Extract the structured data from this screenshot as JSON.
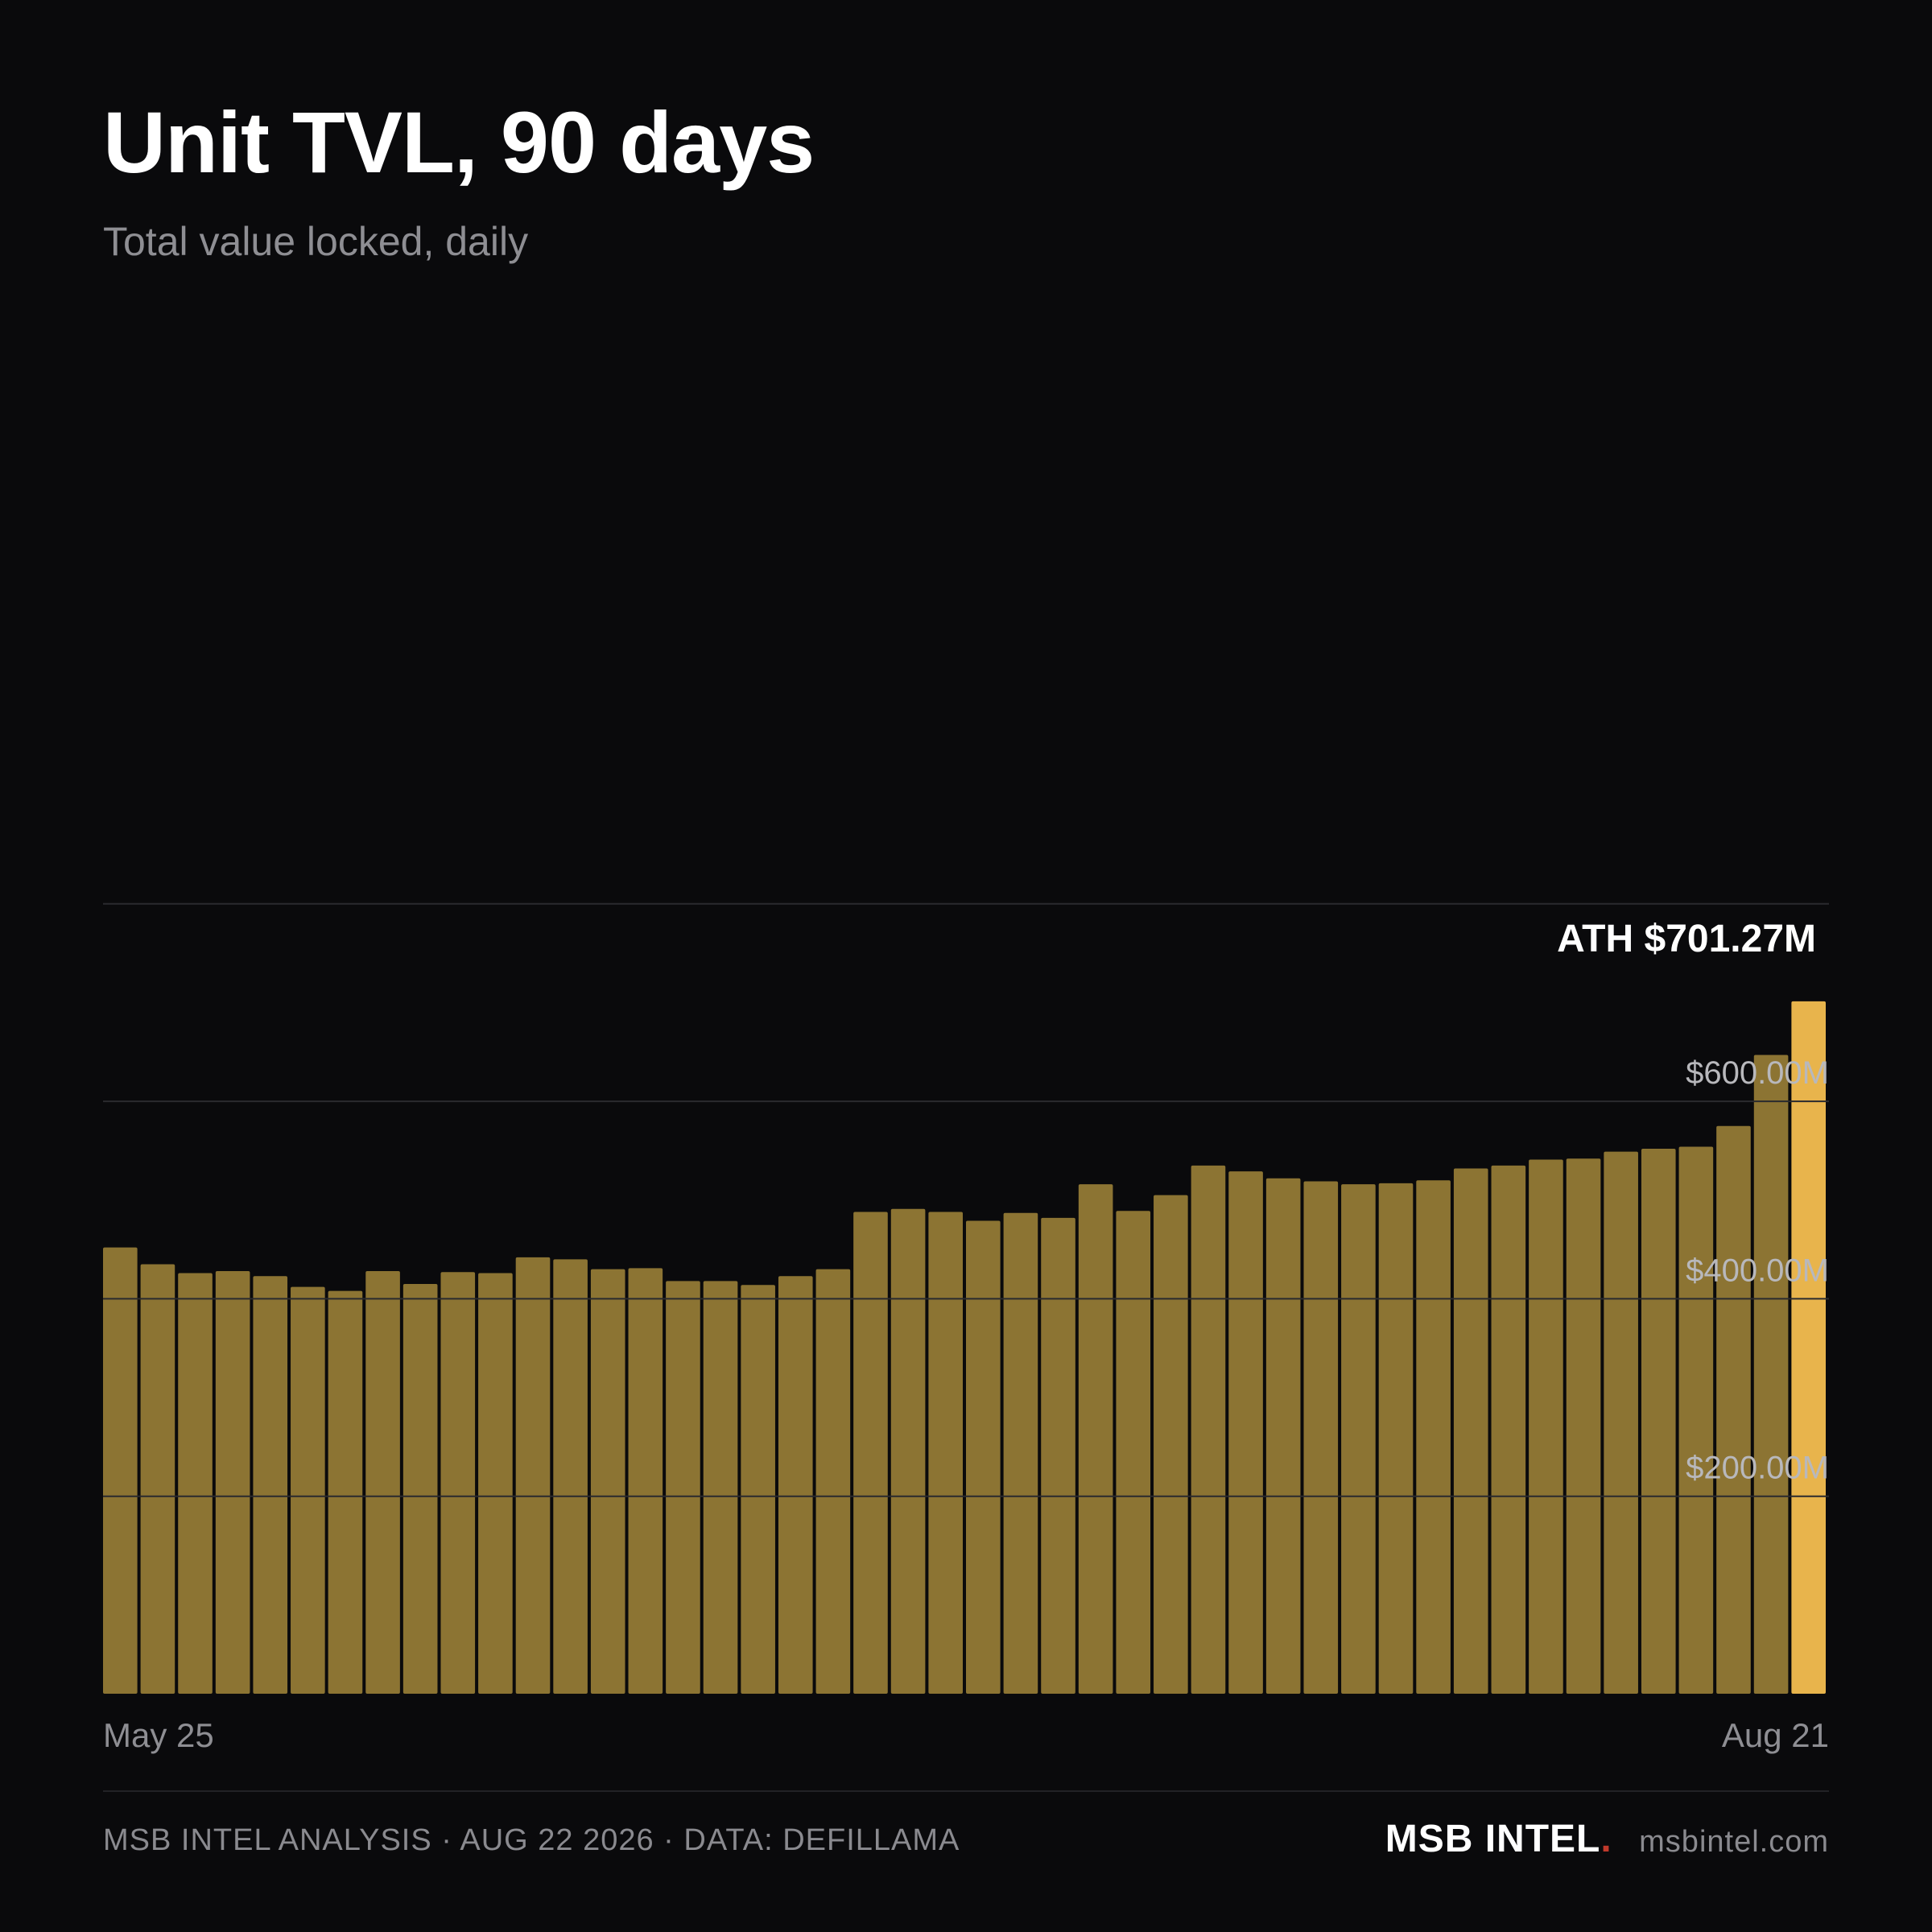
{
  "header": {
    "title": "Unit TVL, 90 days",
    "subtitle": "Total value locked, daily"
  },
  "colors": {
    "background": "#0a0a0c",
    "bar": "#8c7433",
    "highlight_bar": "#e8b44c",
    "gridline": "#2a2a2e",
    "brand_dot": "#c0392b"
  },
  "chart_data": {
    "type": "bar",
    "x_start_label": "May 25",
    "x_end_label": "Aug 21",
    "ylim": [
      0,
      700
    ],
    "y_unit": "$M",
    "y_ticks": [
      {
        "value": 200,
        "label": "$200.00M"
      },
      {
        "value": 400,
        "label": "$400.00M"
      },
      {
        "value": 600,
        "label": "$600.00M"
      },
      {
        "value": 800,
        "label": ""
      }
    ],
    "values": [
      452,
      435,
      426,
      428,
      423,
      412,
      408,
      428,
      415,
      427,
      426,
      442,
      440,
      430,
      431,
      418,
      418,
      414,
      423,
      430,
      488,
      491,
      488,
      479,
      487,
      482,
      516,
      489,
      505,
      535,
      529,
      522,
      519,
      516,
      517,
      520,
      532,
      535,
      541,
      542,
      549,
      552,
      554,
      575,
      647,
      701.27
    ],
    "highlight_index": 45,
    "annotation": "ATH $701.27M"
  },
  "footer": {
    "credit": "MSB INTEL ANALYSIS · AUG 22 2026 · DATA: DEFILLAMA",
    "brand": "MSB INTEL",
    "brand_dot": ".",
    "site": "msbintel.com"
  }
}
